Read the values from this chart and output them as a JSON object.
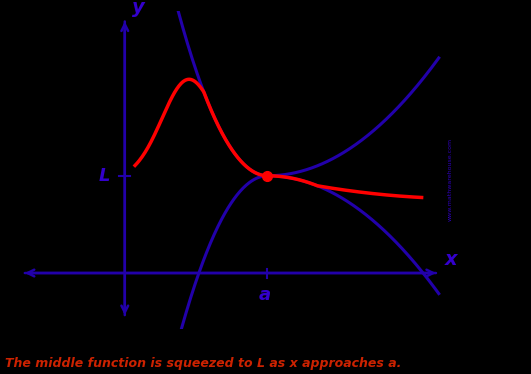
{
  "bg_color": "#000000",
  "curve_color": "#2200aa",
  "middle_color": "#ff0000",
  "dot_color": "#ff0000",
  "text_color": "#3300cc",
  "bottom_text_color": "#cc2200",
  "axis_color": "#2200aa",
  "title": "The middle function is squeezed to L as x approaches a.",
  "watermark": "www.mathwarehouse.com",
  "label_L": "L",
  "label_a": "a",
  "label_x": "x",
  "label_y": "y",
  "figsize": [
    5.31,
    3.74
  ],
  "dpi": 100,
  "xlim": [
    -2.0,
    6.0
  ],
  "ylim": [
    -3.5,
    5.0
  ],
  "ox": 0.0,
  "oy": -2.0,
  "a_x": 2.5,
  "L_y": 0.6
}
